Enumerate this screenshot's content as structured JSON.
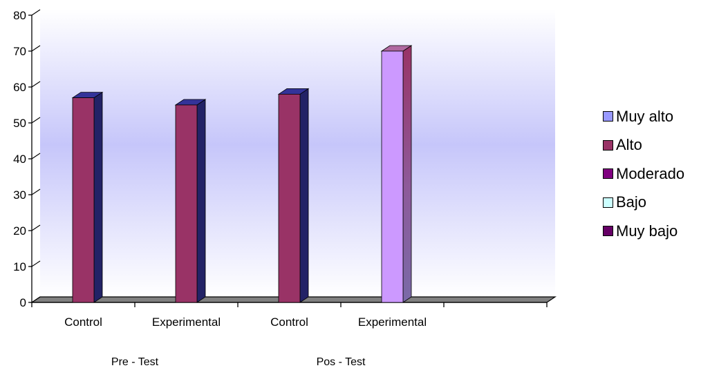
{
  "chart_data": {
    "type": "bar",
    "style": "3d",
    "ylim": [
      0,
      80
    ],
    "yticks": [
      0,
      10,
      20,
      30,
      40,
      50,
      60,
      70,
      80
    ],
    "categories": [
      "Control",
      "Experimental",
      "Control",
      "Experimental"
    ],
    "groups": [
      {
        "label": "Pre - Test",
        "categories": [
          "Control",
          "Experimental"
        ]
      },
      {
        "label": "Pos - Test",
        "categories": [
          "Control",
          "Experimental"
        ]
      }
    ],
    "series": [
      {
        "name": "Muy alto",
        "color": "#9999ff",
        "values": [
          0,
          0,
          0,
          0
        ]
      },
      {
        "name": "Alto",
        "color": "#993366",
        "values": [
          57,
          55,
          58,
          70
        ]
      },
      {
        "name": "Moderado",
        "color": "#800080",
        "values": [
          0,
          0,
          0,
          0
        ]
      },
      {
        "name": "Bajo",
        "color": "#ccffff",
        "values": [
          0,
          0,
          0,
          0
        ]
      },
      {
        "name": "Muy bajo",
        "color": "#660066",
        "values": [
          0,
          0,
          0,
          0
        ]
      }
    ],
    "highlighted_bar": {
      "category_index": 3,
      "color": "#cc99ff"
    },
    "legend_position": "right",
    "grid": false,
    "plot_background": "gradient white to #c6c6fa"
  }
}
